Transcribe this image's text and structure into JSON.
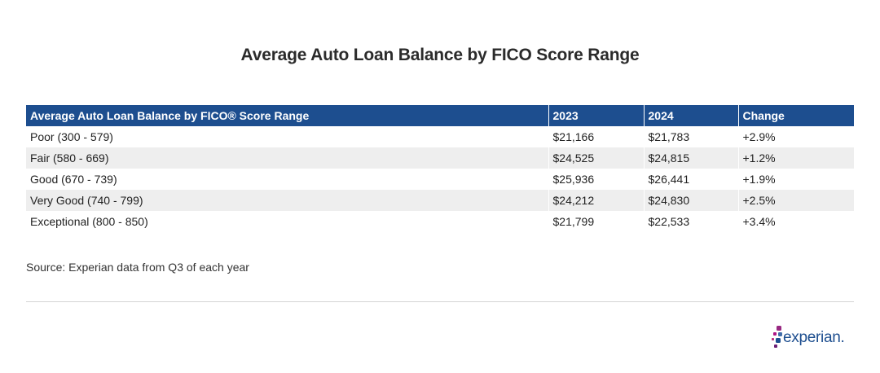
{
  "title": "Average Auto Loan Balance by FICO Score Range",
  "table": {
    "headers": [
      "Average Auto Loan Balance by FICO® Score Range",
      "2023",
      "2024",
      "Change"
    ],
    "rows": [
      [
        "Poor (300 - 579)",
        "$21,166",
        "$21,783",
        "+2.9%"
      ],
      [
        "Fair (580 - 669)",
        "$24,525",
        "$24,815",
        "+1.2%"
      ],
      [
        "Good (670 - 739)",
        "$25,936",
        "$26,441",
        "+1.9%"
      ],
      [
        "Very Good (740 - 799)",
        "$24,212",
        "$24,830",
        "+2.5%"
      ],
      [
        "Exceptional (800 - 850)",
        "$21,799",
        "$22,533",
        "+3.4%"
      ]
    ]
  },
  "chart_data": {
    "type": "table",
    "title": "Average Auto Loan Balance by FICO Score Range",
    "columns": [
      "Average Auto Loan Balance by FICO® Score Range",
      "2023",
      "2024",
      "Change"
    ],
    "categories": [
      "Poor (300 - 579)",
      "Fair (580 - 669)",
      "Good (670 - 739)",
      "Very Good (740 - 799)",
      "Exceptional (800 - 850)"
    ],
    "series": [
      {
        "name": "2023",
        "values": [
          21166,
          24525,
          25936,
          24212,
          21799
        ]
      },
      {
        "name": "2024",
        "values": [
          21783,
          24815,
          26441,
          24830,
          22533
        ]
      },
      {
        "name": "Change",
        "values": [
          2.9,
          1.2,
          1.9,
          2.5,
          3.4
        ]
      }
    ]
  },
  "source": "Source: Experian data from Q3 of each year",
  "logo": {
    "text": "experian.",
    "dot_colors": [
      "#982881",
      "#af1685",
      "#426da9",
      "#ba2f7d",
      "#1d4f91",
      "#6d2077"
    ]
  },
  "colors": {
    "header_bg": "#1d4e8f",
    "stripe": "#eeeeee"
  }
}
